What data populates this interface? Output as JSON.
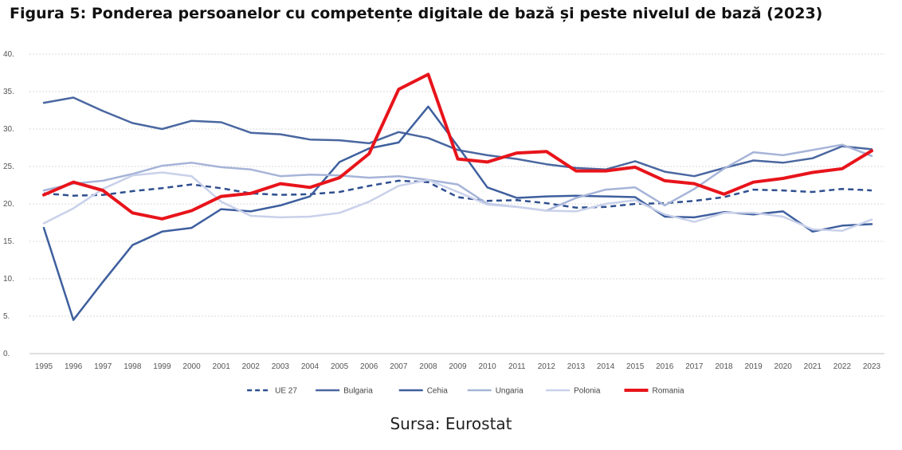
{
  "title": "Figura 5: Ponderea persoanelor cu competențe digitale de bază și peste nivelul de bază (2023)",
  "source": "Sursa: Eurostat",
  "chart_data": {
    "type": "line",
    "title": "",
    "xlabel": "",
    "ylabel": "",
    "x": [
      "1995",
      "1996",
      "1997",
      "1998",
      "1999",
      "2000",
      "2001",
      "2002",
      "2003",
      "2004",
      "2005",
      "2006",
      "2007",
      "2008",
      "2009",
      "2010",
      "2011",
      "2012",
      "2013",
      "2014",
      "2015",
      "2016",
      "2017",
      "2018",
      "2019",
      "2020",
      "2021",
      "2022",
      "2023"
    ],
    "ylim": [
      0,
      40
    ],
    "yticks": [
      "0.",
      "5.",
      "10.",
      "15.",
      "20.",
      "25.",
      "30.",
      "35.",
      "40."
    ],
    "grid": true,
    "legend_position": "bottom",
    "series": [
      {
        "name": "UE 27",
        "color": "#2F4F8F",
        "style": "dashed",
        "width": 2.5,
        "values": [
          21.4,
          21.1,
          21.2,
          21.7,
          22.1,
          22.6,
          22.1,
          21.4,
          21.2,
          21.3,
          21.6,
          22.4,
          23.1,
          22.9,
          20.9,
          20.4,
          20.5,
          20.1,
          19.5,
          19.6,
          20.0,
          20.1,
          20.4,
          20.9,
          21.9,
          21.8,
          21.6,
          22.0,
          21.8
        ]
      },
      {
        "name": "Bulgaria",
        "color": "#4A67A0",
        "style": "solid",
        "width": 2.5,
        "values": [
          33.5,
          34.2,
          32.4,
          30.8,
          30.0,
          31.1,
          30.9,
          29.5,
          29.3,
          28.6,
          28.5,
          28.1,
          29.6,
          28.8,
          27.2,
          26.5,
          26.0,
          25.3,
          24.8,
          24.6,
          25.7,
          24.3,
          23.7,
          24.8,
          25.8,
          25.5,
          26.1,
          27.7,
          27.3
        ]
      },
      {
        "name": "Cehia",
        "color": "#3E5F9E",
        "style": "solid",
        "width": 2.5,
        "values": [
          16.8,
          4.5,
          9.6,
          14.5,
          16.3,
          16.8,
          19.3,
          19.0,
          19.8,
          21.0,
          25.6,
          27.4,
          28.2,
          33.0,
          27.7,
          22.2,
          20.8,
          21.0,
          21.1,
          21.0,
          20.9,
          18.3,
          18.2,
          18.9,
          18.6,
          19.0,
          16.3,
          17.1,
          17.3
        ]
      },
      {
        "name": "Ungaria",
        "color": "#A6B4D8",
        "style": "solid",
        "width": 2.5,
        "values": [
          21.8,
          22.7,
          23.1,
          24.0,
          25.1,
          25.5,
          24.9,
          24.6,
          23.7,
          23.9,
          23.8,
          23.5,
          23.7,
          23.2,
          22.6,
          20.0,
          19.6,
          19.1,
          20.8,
          21.9,
          22.2,
          19.8,
          22.0,
          24.7,
          26.9,
          26.5,
          27.2,
          27.9,
          26.4
        ]
      },
      {
        "name": "Polonia",
        "color": "#C9D1EA",
        "style": "solid",
        "width": 2.5,
        "values": [
          17.4,
          19.4,
          22.0,
          23.8,
          24.2,
          23.7,
          20.3,
          18.4,
          18.2,
          18.3,
          18.8,
          20.3,
          22.4,
          23.2,
          21.6,
          19.9,
          19.6,
          19.1,
          19.0,
          20.0,
          20.5,
          18.6,
          17.6,
          18.8,
          18.8,
          18.3,
          16.6,
          16.4,
          17.9
        ]
      },
      {
        "name": "Romania",
        "color": "#E8141B",
        "style": "solid",
        "width": 4,
        "values": [
          21.2,
          22.9,
          21.8,
          18.8,
          18.0,
          19.1,
          21.0,
          21.4,
          22.7,
          22.2,
          23.5,
          26.7,
          35.3,
          37.3,
          26.0,
          25.6,
          26.8,
          27.0,
          24.4,
          24.4,
          24.9,
          23.1,
          22.7,
          21.3,
          22.9,
          23.4,
          24.2,
          24.7,
          27.1
        ]
      }
    ]
  }
}
